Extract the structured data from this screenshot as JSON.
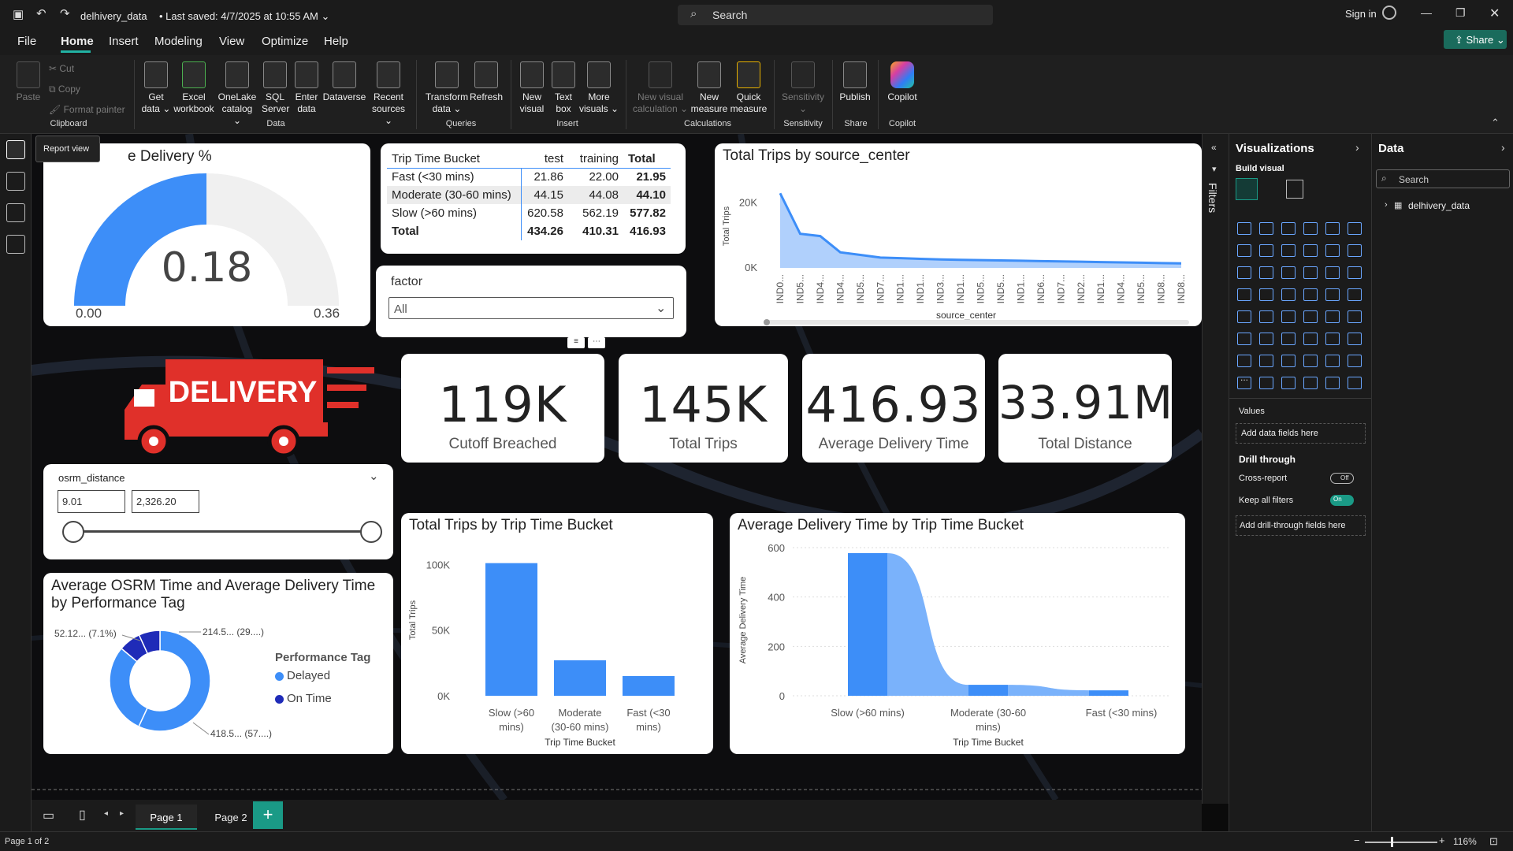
{
  "titlebar": {
    "file": "delhivery_data",
    "saved": "Last saved: 4/7/2025 at 10:55 AM",
    "search": "Search",
    "signin": "Sign in"
  },
  "menu": [
    "File",
    "Home",
    "Insert",
    "Modeling",
    "View",
    "Optimize",
    "Help"
  ],
  "share": "Share",
  "ribbon": {
    "paste": "Paste",
    "cut": "Cut",
    "copy": "Copy",
    "format_painter": "Format painter",
    "get": "Get",
    "data": "data",
    "excel": "Excel",
    "workbook": "workbook",
    "onelake": "OneLake",
    "catalog": "catalog",
    "sql": "SQL",
    "server": "Server",
    "enter": "Enter",
    "enter_data": "data",
    "dataverse": "Dataverse",
    "recent": "Recent",
    "sources": "sources",
    "transform": "Transform",
    "tdata": "data",
    "refresh": "Refresh",
    "new": "New",
    "visual": "visual",
    "text": "Text",
    "box": "box",
    "more": "More",
    "visuals": "visuals",
    "nv_calc1": "New visual",
    "nv_calc2": "calculation",
    "new_measure1": "New",
    "new_measure2": "measure",
    "quick1": "Quick",
    "quick2": "measure",
    "sensitivity": "Sensitivity",
    "publish": "Publish",
    "copilot": "Copilot",
    "groups": {
      "clipboard": "Clipboard",
      "data": "Data",
      "queries": "Queries",
      "insert": "Insert",
      "calculations": "Calculations",
      "sensitivity": "Sensitivity",
      "share": "Share",
      "copilot": "Copilot"
    }
  },
  "tooltip": "Report view",
  "gauge": {
    "title": "e Delivery %",
    "value": "0.18",
    "min": "0.00",
    "max": "0.36",
    "fraction": 0.5
  },
  "matrix": {
    "headers": [
      "Trip Time Bucket",
      "test",
      "training",
      "Total"
    ],
    "rows": [
      [
        "Fast (<30 mins)",
        "21.86",
        "22.00",
        "21.95"
      ],
      [
        "Moderate (30-60 mins)",
        "44.15",
        "44.08",
        "44.10"
      ],
      [
        "Slow (>60 mins)",
        "620.58",
        "562.19",
        "577.82"
      ],
      [
        "Total",
        "434.26",
        "410.31",
        "416.93"
      ]
    ]
  },
  "factor": {
    "label": "factor",
    "value": "All"
  },
  "logo_text": "DELIVERY",
  "kpis": [
    {
      "value": "119K",
      "label": "Cutoff Breached"
    },
    {
      "value": "145K",
      "label": "Total Trips"
    },
    {
      "value": "416.93",
      "label": "Average Delivery Time"
    },
    {
      "value": "33.91M",
      "label": "Total Distance"
    }
  ],
  "slider": {
    "label": "osrm_distance",
    "min": "9.01",
    "max": "2,326.20"
  },
  "pages": {
    "page1": "Page 1",
    "page2": "Page 2",
    "status": "Page 1 of 2",
    "zoom": "116%"
  },
  "filters_label": "Filters",
  "viz_panel": {
    "title": "Visualizations",
    "build": "Build visual",
    "values": "Values",
    "add_fields": "Add data fields here",
    "drill": "Drill through",
    "cross": "Cross-report",
    "cross_state": "Off",
    "keep": "Keep all filters",
    "keep_state": "On",
    "add_drill": "Add drill-through fields here",
    "more": "..."
  },
  "data_panel": {
    "title": "Data",
    "search": "Search",
    "table": "delhivery_data"
  },
  "chart_data": [
    {
      "type": "area",
      "title": "Total Trips by source_center",
      "xlabel": "source_center",
      "ylabel": "Total Trips",
      "yticks": [
        "20K",
        "0K"
      ],
      "ylim": [
        0,
        25000
      ],
      "categories": [
        "IND0...",
        "IND5...",
        "IND4...",
        "IND4...",
        "IND5...",
        "IND7...",
        "IND1...",
        "IND1...",
        "IND3...",
        "IND1...",
        "IND5...",
        "IND5...",
        "IND1...",
        "IND6...",
        "IND7...",
        "IND2...",
        "IND1...",
        "IND4...",
        "IND5...",
        "IND8...",
        "IND8..."
      ],
      "values": [
        23000,
        10500,
        9800,
        4800,
        4000,
        3200,
        3000,
        2800,
        2600,
        2500,
        2400,
        2300,
        2200,
        2100,
        2000,
        1900,
        1800,
        1700,
        1600,
        1500,
        1400
      ]
    },
    {
      "type": "bar",
      "title": "Total Trips by Trip Time Bucket",
      "xlabel": "Trip Time Bucket",
      "ylabel": "Total Trips",
      "ylim": [
        0,
        120000
      ],
      "yticks": [
        {
          "v": 100000,
          "t": "100K"
        },
        {
          "v": 50000,
          "t": "50K"
        },
        {
          "v": 0,
          "t": "0K"
        }
      ],
      "categories": [
        "Slow (>60 mins)",
        "Moderate (30-60 mins)",
        "Fast (<30 mins)"
      ],
      "values": [
        101000,
        27000,
        15000
      ]
    },
    {
      "type": "area",
      "title": "Average Delivery Time by Trip Time Bucket",
      "xlabel": "Trip Time Bucket",
      "ylabel": "Average Delivery Time",
      "ylim": [
        0,
        600
      ],
      "yticks": [
        600,
        400,
        200,
        0
      ],
      "categories": [
        "Slow (>60 mins)",
        "Moderate (30-60 mins)",
        "Fast (<30 mins)"
      ],
      "values": [
        577.82,
        44.1,
        21.95
      ]
    },
    {
      "type": "pie",
      "title": "Average OSRM Time and Average Delivery Time by Performance Tag",
      "legend_title": "Performance Tag",
      "series": [
        {
          "name": "Delayed",
          "value": 418.5,
          "label": "418.5... (57....)",
          "color": "#3d8ef8"
        },
        {
          "name": "On Time",
          "value": 214.5,
          "label": "214.5... (29....)",
          "color": "#1f2bb8"
        }
      ],
      "extra_label": "52.12... (7.1%)",
      "slices": [
        {
          "value": 418.5,
          "color": "#3d8ef8"
        },
        {
          "value": 214.5,
          "color": "#3d8ef8"
        },
        {
          "value": 52.12,
          "color": "#1f2bb8"
        },
        {
          "value": 50.0,
          "color": "#1f2bb8"
        }
      ]
    }
  ]
}
